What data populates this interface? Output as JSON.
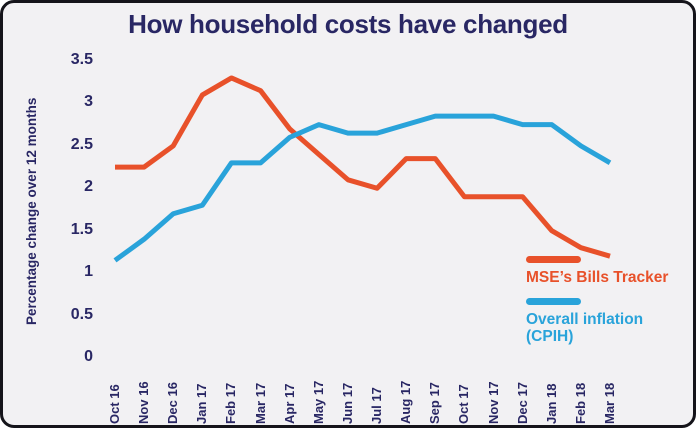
{
  "window": {
    "background_color": "#f2f1f3",
    "border_color": "#15141a"
  },
  "chart_data": {
    "type": "line",
    "title": "How household costs have changed",
    "xlabel": "",
    "ylabel": "Percentage change over 12 months",
    "ylim": [
      0,
      3.5
    ],
    "yticks": [
      3.5,
      3,
      2.5,
      2,
      1.5,
      1,
      0.5,
      0
    ],
    "grid": false,
    "axis_lines": false,
    "legend_position": "inside-right",
    "text_color": "#292764",
    "categories": [
      "Oct 16",
      "Nov 16",
      "Dec 16",
      "Jan 17",
      "Feb 17",
      "Mar 17",
      "Apr 17",
      "May 17",
      "Jun 17",
      "Jul 17",
      "Aug 17",
      "Sep 17",
      "Oct 17",
      "Nov 17",
      "Dec 17",
      "Jan 18",
      "Feb 18",
      "Mar 18"
    ],
    "series": [
      {
        "name": "MSE’s Bills Tracker",
        "color": "#e8512a",
        "values": [
          2.25,
          2.25,
          2.5,
          3.1,
          3.3,
          3.15,
          2.7,
          2.4,
          2.1,
          2.0,
          2.35,
          2.35,
          1.9,
          1.9,
          1.9,
          1.5,
          1.3,
          1.2
        ]
      },
      {
        "name": "Overall inflation (CPIH)",
        "color": "#29a3da",
        "values": [
          1.15,
          1.4,
          1.7,
          1.8,
          2.3,
          2.3,
          2.6,
          2.75,
          2.65,
          2.65,
          2.75,
          2.85,
          2.85,
          2.85,
          2.75,
          2.75,
          2.5,
          2.3
        ]
      }
    ]
  }
}
